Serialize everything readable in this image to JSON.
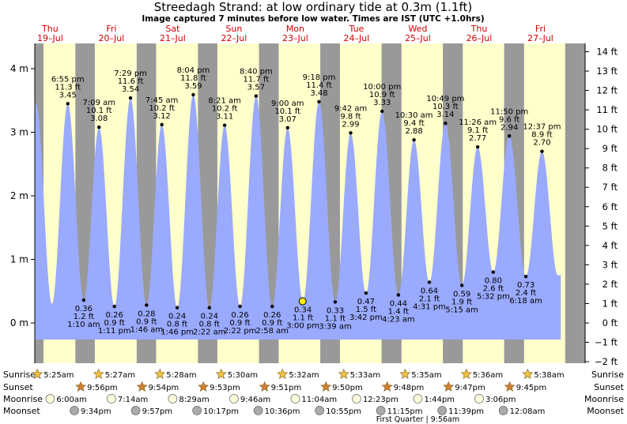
{
  "title": "Streedagh Strand: at low  ordinary tide at 0.3m (1.1ft)",
  "subtitle": "Image captured 7 minutes before low water. Times are IST (UTC +1.0hrs)",
  "colors": {
    "night": "#999999",
    "day": "#ffffcc",
    "water": "#99aaff",
    "day_label": "#cc0000",
    "sun_icon": "#f0c040",
    "sunset_icon": "#d08030",
    "moonrise_icon": "#ffffdd",
    "moonset_icon": "#aaaaaa"
  },
  "chart_data": {
    "type": "area",
    "title": "Streedagh Strand: at low  ordinary tide at 0.3m (1.1ft)",
    "ylabel_left_unit": "m",
    "ylabel_right_unit": "ft",
    "ylim_m": [
      -0.65,
      4.4
    ],
    "left_ticks": [
      "0 m",
      "1 m",
      "2 m",
      "3 m",
      "4 m"
    ],
    "left_tick_values": [
      0,
      1,
      2,
      3,
      4
    ],
    "right_ticks": [
      "−2 ft",
      "−1 ft",
      "0 ft",
      "1 ft",
      "2 ft",
      "3 ft",
      "4 ft",
      "5 ft",
      "6 ft",
      "7 ft",
      "8 ft",
      "9 ft",
      "10 ft",
      "11 ft",
      "12 ft",
      "13 ft",
      "14 ft"
    ],
    "right_tick_values_ft": [
      -2,
      -1,
      0,
      1,
      2,
      3,
      4,
      5,
      6,
      7,
      8,
      9,
      10,
      11,
      12,
      13,
      14
    ],
    "x_start_hour": 6.0,
    "x_end_hour": 221.5,
    "days": [
      {
        "dow": "Thu",
        "date": "19–Jul",
        "hour": 12
      },
      {
        "dow": "Fri",
        "date": "20–Jul",
        "hour": 36
      },
      {
        "dow": "Sat",
        "date": "21–Jul",
        "hour": 60
      },
      {
        "dow": "Sun",
        "date": "22–Jul",
        "hour": 84
      },
      {
        "dow": "Mon",
        "date": "23–Jul",
        "hour": 108
      },
      {
        "dow": "Tue",
        "date": "24–Jul",
        "hour": 132
      },
      {
        "dow": "Wed",
        "date": "25–Jul",
        "hour": 156
      },
      {
        "dow": "Thu",
        "date": "26–Jul",
        "hour": 180
      },
      {
        "dow": "Fri",
        "date": "27–Jul",
        "hour": 204
      }
    ],
    "night_periods": [
      [
        5.4,
        9.4
      ],
      [
        21.9,
        29.5
      ],
      [
        45.9,
        53.5
      ],
      [
        69.9,
        77.5
      ],
      [
        93.8,
        101.5
      ],
      [
        117.8,
        125.5
      ],
      [
        141.8,
        149.6
      ],
      [
        165.8,
        173.6
      ],
      [
        189.8,
        197.6
      ],
      [
        213.7,
        221.5
      ]
    ],
    "tides": [
      {
        "hour": 18.917,
        "h": 3.45,
        "type": "high",
        "time": "6:55 pm",
        "ft": "11.3 ft",
        "m": "3.45"
      },
      {
        "hour": 25.167,
        "h": 0.36,
        "type": "low",
        "time": "1:10 am",
        "ft": "1.2 ft",
        "m": "0.36"
      },
      {
        "hour": 31.15,
        "h": 3.08,
        "type": "high",
        "time": "7:09 am",
        "ft": "10.1 ft",
        "m": "3.08"
      },
      {
        "hour": 37.183,
        "h": 0.26,
        "type": "low",
        "time": "1:11 pm",
        "ft": "0.9 ft",
        "m": "0.26"
      },
      {
        "hour": 43.483,
        "h": 3.54,
        "type": "high",
        "time": "7:29 pm",
        "ft": "11.6 ft",
        "m": "3.54"
      },
      {
        "hour": 49.767,
        "h": 0.28,
        "type": "low",
        "time": "1:46 am",
        "ft": "0.9 ft",
        "m": "0.28"
      },
      {
        "hour": 55.75,
        "h": 3.12,
        "type": "high",
        "time": "7:45 am",
        "ft": "10.2 ft",
        "m": "3.12"
      },
      {
        "hour": 61.767,
        "h": 0.24,
        "type": "low",
        "time": "1:46 pm",
        "ft": "0.8 ft",
        "m": "0.24"
      },
      {
        "hour": 68.067,
        "h": 3.59,
        "type": "high",
        "time": "8:04 pm",
        "ft": "11.8 ft",
        "m": "3.59"
      },
      {
        "hour": 74.367,
        "h": 0.24,
        "type": "low",
        "time": "2:22 am",
        "ft": "0.8 ft",
        "m": "0.24"
      },
      {
        "hour": 80.35,
        "h": 3.11,
        "type": "high",
        "time": "8:21 am",
        "ft": "10.2 ft",
        "m": "3.11"
      },
      {
        "hour": 86.367,
        "h": 0.26,
        "type": "low",
        "time": "2:22 pm",
        "ft": "0.9 ft",
        "m": "0.26"
      },
      {
        "hour": 92.667,
        "h": 3.57,
        "type": "high",
        "time": "8:40 pm",
        "ft": "11.7 ft",
        "m": "3.57"
      },
      {
        "hour": 98.967,
        "h": 0.26,
        "type": "low",
        "time": "2:58 am",
        "ft": "0.9 ft",
        "m": "0.26"
      },
      {
        "hour": 105.0,
        "h": 3.07,
        "type": "high",
        "time": "9:00 am",
        "ft": "10.1 ft",
        "m": "3.07"
      },
      {
        "hour": 111.0,
        "h": 0.34,
        "type": "low",
        "time": "3:00 pm",
        "ft": "1.1 ft",
        "m": "0.34"
      },
      {
        "hour": 117.3,
        "h": 3.48,
        "type": "high",
        "time": "9:18 pm",
        "ft": "11.4 ft",
        "m": "3.48"
      },
      {
        "hour": 123.65,
        "h": 0.33,
        "type": "low",
        "time": "3:39 am",
        "ft": "1.1 ft",
        "m": "0.33"
      },
      {
        "hour": 129.7,
        "h": 2.99,
        "type": "high",
        "time": "9:42 am",
        "ft": "9.8 ft",
        "m": "2.99"
      },
      {
        "hour": 135.7,
        "h": 0.47,
        "type": "low",
        "time": "3:42 pm",
        "ft": "1.5 ft",
        "m": "0.47"
      },
      {
        "hour": 142.0,
        "h": 3.33,
        "type": "high",
        "time": "10:00 pm",
        "ft": "10.9 ft",
        "m": "3.33"
      },
      {
        "hour": 148.383,
        "h": 0.44,
        "type": "low",
        "time": "4:23 am",
        "ft": "1.4 ft",
        "m": "0.44"
      },
      {
        "hour": 154.5,
        "h": 2.88,
        "type": "high",
        "time": "10:30 am",
        "ft": "9.4 ft",
        "m": "2.88"
      },
      {
        "hour": 160.517,
        "h": 0.64,
        "type": "low",
        "time": "4:31 pm",
        "ft": "2.1 ft",
        "m": "0.64"
      },
      {
        "hour": 166.817,
        "h": 3.14,
        "type": "high",
        "time": "10:49 pm",
        "ft": "10.3 ft",
        "m": "3.14"
      },
      {
        "hour": 173.25,
        "h": 0.59,
        "type": "low",
        "time": "5:15 am",
        "ft": "1.9 ft",
        "m": "0.59"
      },
      {
        "hour": 179.433,
        "h": 2.77,
        "type": "high",
        "time": "11:26 am",
        "ft": "9.1 ft",
        "m": "2.77"
      },
      {
        "hour": 185.533,
        "h": 0.8,
        "type": "low",
        "time": "5:32 pm",
        "ft": "2.6 ft",
        "m": "0.80"
      },
      {
        "hour": 191.833,
        "h": 2.94,
        "type": "high",
        "time": "11:50 pm",
        "ft": "9.6 ft",
        "m": "2.94"
      },
      {
        "hour": 198.3,
        "h": 0.73,
        "type": "low",
        "time": "6:18 am",
        "ft": "2.4 ft",
        "m": "0.73"
      },
      {
        "hour": 204.617,
        "h": 2.7,
        "type": "high",
        "time": "12:37 pm",
        "ft": "8.9 ft",
        "m": "2.70"
      }
    ],
    "current": {
      "hour": 110.883,
      "h": 0.34
    },
    "sunrise": [
      "5:25am",
      "5:27am",
      "5:28am",
      "5:30am",
      "5:32am",
      "5:33am",
      "5:35am",
      "5:36am",
      "5:38am"
    ],
    "sunset": [
      "9:56pm",
      "9:54pm",
      "9:53pm",
      "9:51pm",
      "9:50pm",
      "9:48pm",
      "9:47pm",
      "9:45pm"
    ],
    "moonrise": [
      "6:00am",
      "7:14am",
      "8:29am",
      "9:46am",
      "11:04am",
      "12:23pm",
      "1:44pm",
      "3:06pm"
    ],
    "moonset": [
      "9:34pm",
      "9:57pm",
      "10:17pm",
      "10:36pm",
      "10:55pm",
      "11:15pm",
      "11:39pm",
      "12:08am"
    ],
    "row_labels": {
      "sunrise": "Sunrise",
      "sunset": "Sunset",
      "moonrise": "Moonrise",
      "moonset": "Moonset"
    },
    "moon_phase_note": "First Quarter | 9:56am"
  }
}
